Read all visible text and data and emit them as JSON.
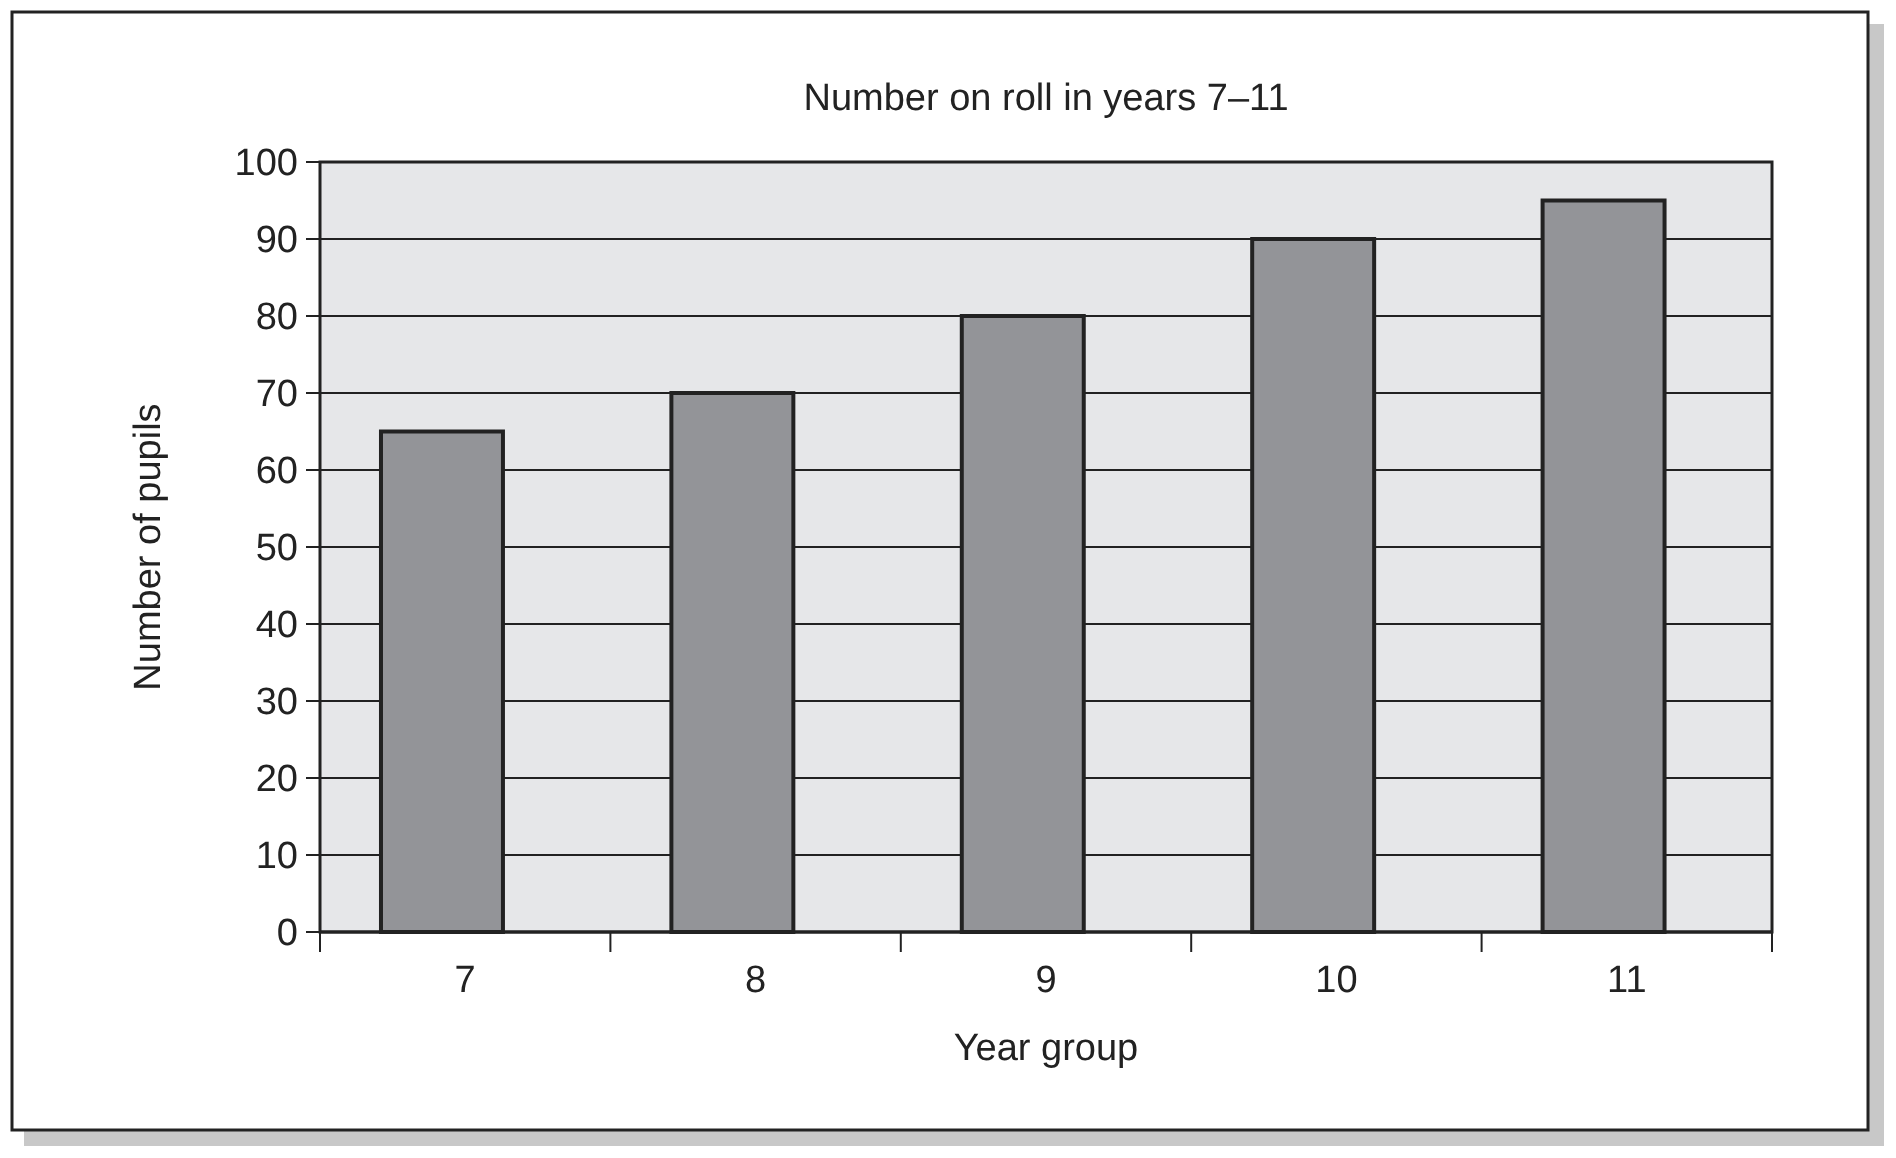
{
  "chart_data": {
    "type": "bar",
    "title": "Number on roll in years 7–11",
    "xlabel": "Year group",
    "ylabel": "Number of pupils",
    "categories": [
      "7",
      "8",
      "9",
      "10",
      "11"
    ],
    "values": [
      65,
      70,
      80,
      90,
      95
    ],
    "color": "#939498",
    "ylim": [
      0,
      100
    ],
    "yticks": [
      0,
      10,
      20,
      30,
      40,
      50,
      60,
      70,
      80,
      90,
      100
    ],
    "grid": "y"
  }
}
